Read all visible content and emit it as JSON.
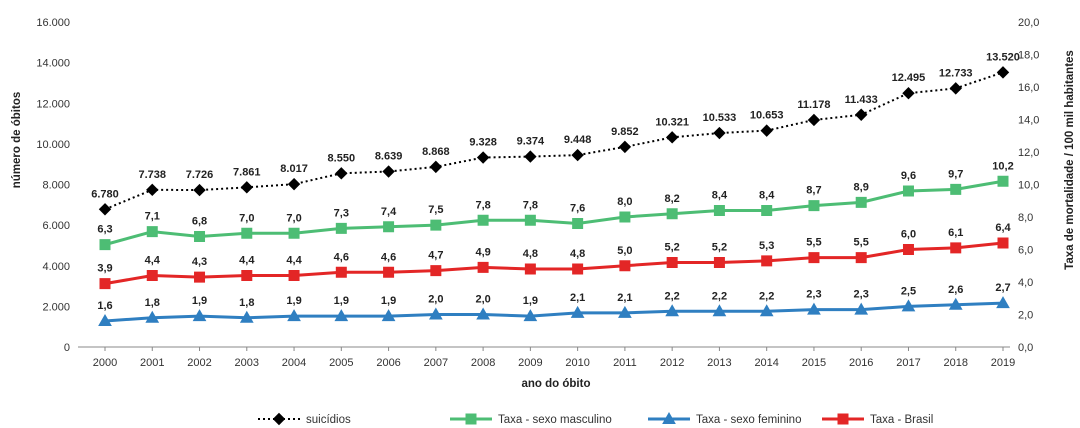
{
  "chart_data": {
    "type": "line",
    "x": [
      "2000",
      "2001",
      "2002",
      "2003",
      "2004",
      "2005",
      "2006",
      "2007",
      "2008",
      "2009",
      "2010",
      "2011",
      "2012",
      "2013",
      "2014",
      "2015",
      "2016",
      "2017",
      "2018",
      "2019"
    ],
    "xlabel": "ano do óbito",
    "ylabel_left": "número de óbitos",
    "ylabel_right": "Taxa de mortalidade / 100 mil habitantes",
    "ylim_left": [
      0,
      16000
    ],
    "ylim_right": [
      0,
      20
    ],
    "yticks_left": [
      "0",
      "2.000",
      "4.000",
      "6.000",
      "8.000",
      "10.000",
      "12.000",
      "14.000",
      "16.000"
    ],
    "yticks_right": [
      "0,0",
      "2,0",
      "4,0",
      "6,0",
      "8,0",
      "10,0",
      "12,0",
      "14,0",
      "16,0",
      "18,0",
      "20,0"
    ],
    "legend_position": "bottom",
    "series": [
      {
        "name": "suicídios",
        "axis": "left",
        "color": "#000000",
        "marker": "diamond",
        "style": "dotted",
        "values": [
          6780,
          7738,
          7726,
          7861,
          8017,
          8550,
          8639,
          8868,
          9328,
          9374,
          9448,
          9852,
          10321,
          10533,
          10653,
          11178,
          11433,
          12495,
          12733,
          13520
        ],
        "labels": [
          "6.780",
          "7.738",
          "7.726",
          "7.861",
          "8.017",
          "8.550",
          "8.639",
          "8.868",
          "9.328",
          "9.374",
          "9.448",
          "9.852",
          "10.321",
          "10.533",
          "10.653",
          "11.178",
          "11.433",
          "12.495",
          "12.733",
          "13.520"
        ]
      },
      {
        "name": "Taxa - sexo masculino",
        "axis": "right",
        "color": "#4dbd74",
        "marker": "square",
        "style": "solid",
        "values": [
          6.3,
          7.1,
          6.8,
          7.0,
          7.0,
          7.3,
          7.4,
          7.5,
          7.8,
          7.8,
          7.6,
          8.0,
          8.2,
          8.4,
          8.4,
          8.7,
          8.9,
          9.6,
          9.7,
          10.2
        ],
        "labels": [
          "6,3",
          "7,1",
          "6,8",
          "7,0",
          "7,0",
          "7,3",
          "7,4",
          "7,5",
          "7,8",
          "7,8",
          "7,6",
          "8,0",
          "8,2",
          "8,4",
          "8,4",
          "8,7",
          "8,9",
          "9,6",
          "9,7",
          "10,2"
        ]
      },
      {
        "name": "Taxa - sexo feminino",
        "axis": "right",
        "color": "#2f7fc1",
        "marker": "triangle",
        "style": "solid",
        "values": [
          1.6,
          1.8,
          1.9,
          1.8,
          1.9,
          1.9,
          1.9,
          2.0,
          2.0,
          1.9,
          2.1,
          2.1,
          2.2,
          2.2,
          2.2,
          2.3,
          2.3,
          2.5,
          2.6,
          2.7
        ],
        "labels": [
          "1,6",
          "1,8",
          "1,9",
          "1,8",
          "1,9",
          "1,9",
          "1,9",
          "2,0",
          "2,0",
          "1,9",
          "2,1",
          "2,1",
          "2,2",
          "2,2",
          "2,2",
          "2,3",
          "2,3",
          "2,5",
          "2,6",
          "2,7"
        ]
      },
      {
        "name": "Taxa - Brasil",
        "axis": "right",
        "color": "#e32626",
        "marker": "square",
        "style": "solid",
        "values": [
          3.9,
          4.4,
          4.3,
          4.4,
          4.4,
          4.6,
          4.6,
          4.7,
          4.9,
          4.8,
          4.8,
          5.0,
          5.2,
          5.2,
          5.3,
          5.5,
          5.5,
          6.0,
          6.1,
          6.4
        ],
        "labels": [
          "3,9",
          "4,4",
          "4,3",
          "4,4",
          "4,4",
          "4,6",
          "4,6",
          "4,7",
          "4,9",
          "4,8",
          "4,8",
          "5,0",
          "5,2",
          "5,2",
          "5,3",
          "5,5",
          "5,5",
          "6,0",
          "6,1",
          "6,4"
        ]
      }
    ]
  }
}
